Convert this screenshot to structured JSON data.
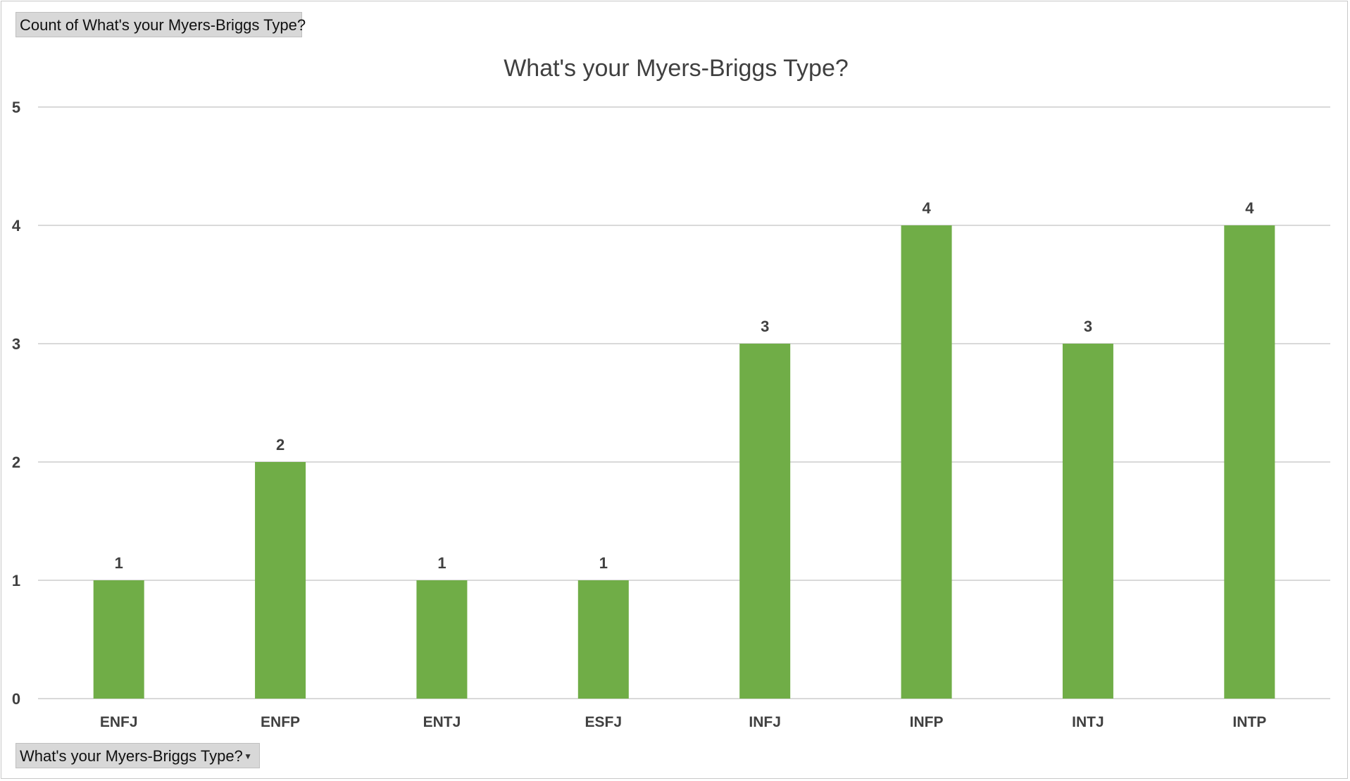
{
  "value_field_button": "Count of What's your Myers-Briggs Type?",
  "axis_field_button": "What's your Myers-Briggs Type?",
  "dropdown_icon": "chevron-down-icon",
  "colors": {
    "bar": "#70AD47",
    "grid": "#d9d9d9",
    "text": "#404040"
  },
  "chart_data": {
    "type": "bar",
    "title": "What's your Myers-Briggs Type?",
    "categories": [
      "ENFJ",
      "ENFP",
      "ENTJ",
      "ESFJ",
      "INFJ",
      "INFP",
      "INTJ",
      "INTP"
    ],
    "values": [
      1,
      2,
      1,
      1,
      3,
      4,
      3,
      4
    ],
    "ylim": [
      0,
      5
    ],
    "yticks": [
      0,
      1,
      2,
      3,
      4,
      5
    ],
    "grid": true,
    "data_labels": true,
    "legend": "none"
  }
}
